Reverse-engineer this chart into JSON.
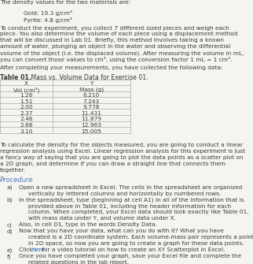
{
  "bg_color": "#f5f4f0",
  "title_text": "The density values for the two materials are:",
  "gold_line": "Gold: 19.3 g/cm³",
  "pyrite_line": "Pyrite: 4.8 g/cm³",
  "after_meas": "After completing your measurements, you have collected the following data:",
  "col_x_header": "X",
  "col_y_header": "Y",
  "col_x_label": "Vol (cm³)",
  "col_y_label": "Mass (g)",
  "vol": [
    1.26,
    1.51,
    2.0,
    2.37,
    2.48,
    2.68,
    3.1
  ],
  "mass": [
    6.21,
    7.243,
    9.778,
    11.431,
    11.879,
    12.963,
    15.005
  ],
  "text_color": "#3a3a3a",
  "link_color": "#1155cc",
  "procedure_color": "#4a7abf",
  "table_border_color": "#aaaaaa",
  "body_fontsize": 5.3,
  "procedure_fontsize": 6.0
}
